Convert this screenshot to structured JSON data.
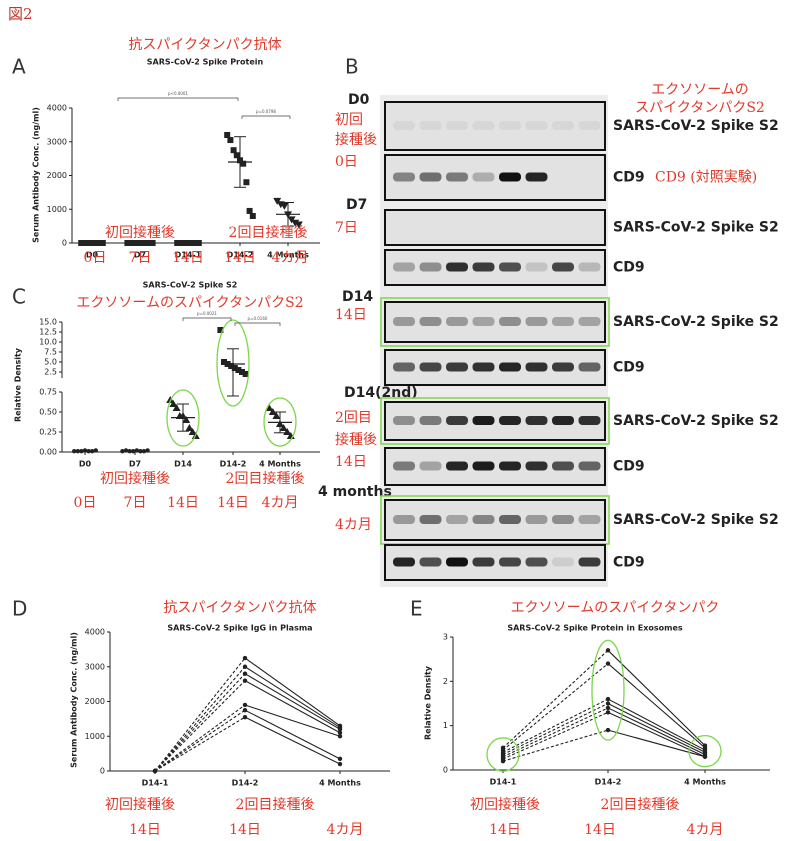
{
  "figure_label": "図2",
  "chart_data": [
    {
      "type": "dotplot",
      "panel": "A",
      "title": "抗スパイクタンパク抗体",
      "subtitle": "SARS-CoV-2 Spike Protein",
      "ylabel": "Serum Antibody Conc. (ng/ml)",
      "categories": [
        "D0",
        "D7",
        "D14-1",
        "D14-2",
        "4 Months"
      ],
      "markers": [
        "square",
        "square",
        "square",
        "square",
        "triangle-down"
      ],
      "points": [
        [
          0,
          0,
          0,
          0,
          0,
          0,
          0
        ],
        [
          0,
          0,
          0,
          0,
          0,
          0,
          0,
          0
        ],
        [
          0,
          0,
          0,
          0,
          0,
          0,
          0
        ],
        [
          3200,
          3050,
          2750,
          2600,
          2450,
          2350,
          1800,
          950,
          800
        ],
        [
          1250,
          1150,
          1100,
          850,
          700,
          600,
          550
        ]
      ],
      "means": [
        0,
        0,
        0,
        2400,
        850
      ],
      "errors": [
        0,
        0,
        0,
        750,
        350
      ],
      "ylim": [
        0,
        4000
      ],
      "yticks": [
        0,
        1000,
        2000,
        3000,
        4000
      ],
      "pvalues": [
        "p<0.0001",
        "p=0.0798"
      ],
      "annotations": {
        "groups": [
          "初回接種後",
          "2回目接種後"
        ],
        "days": [
          "0日",
          "7日",
          "14日",
          "14日",
          "4カ月"
        ]
      },
      "color": "#222222"
    },
    {
      "type": "dotplot-broken",
      "panel": "C",
      "title": "エクソソームのスパイクタンパクS2",
      "subtitle": "SARS-CoV-2 Spike S2",
      "ylabel": "Relative Density",
      "categories": [
        "D0",
        "D7",
        "D14",
        "D14-2",
        "4 Months"
      ],
      "markers": [
        "circle",
        "circle",
        "triangle",
        "square",
        "triangle"
      ],
      "points": [
        [
          0.01,
          0.01,
          0.01,
          0.02,
          0.01,
          0.01,
          0.02
        ],
        [
          0.01,
          0.02,
          0.01,
          0.01,
          0.02,
          0.01,
          0.01,
          0.02
        ],
        [
          0.65,
          0.6,
          0.55,
          0.45,
          0.45,
          0.4,
          0.3,
          0.25,
          0.2
        ],
        [
          13,
          5,
          4.5,
          4,
          3.5,
          3,
          2.5,
          2
        ],
        [
          0.55,
          0.5,
          0.45,
          0.35,
          0.3,
          0.25,
          0.2
        ]
      ],
      "means": [
        0.01,
        0.01,
        0.43,
        4.5,
        0.37
      ],
      "errors": [
        0.005,
        0.005,
        0.17,
        3.8,
        0.13
      ],
      "ylim": [
        0,
        0.75
      ],
      "yticks": [
        {
          "value": 0,
          "label": "0.00"
        },
        {
          "value": 0.25,
          "label": "0.25"
        },
        {
          "value": 0.5,
          "label": "0.50"
        },
        {
          "value": 0.75,
          "label": "0.75"
        }
      ],
      "ylim_upper": [
        1,
        15
      ],
      "yticks_upper": [
        {
          "value": 2.5,
          "label": "2.5"
        },
        {
          "value": 5,
          "label": "5.0"
        },
        {
          "value": 7.5,
          "label": "7.5"
        },
        {
          "value": 10,
          "label": "10.0"
        },
        {
          "value": 12.5,
          "label": "12.5"
        },
        {
          "value": 15,
          "label": "15.0"
        }
      ],
      "pvalues": [
        "p=0.0021",
        "p=0.0160"
      ],
      "highlight": [
        "D14",
        "D14-2",
        "4 Months"
      ],
      "highlight_color": "#7cd64a",
      "annotations": {
        "groups": [
          "初回接種後",
          "2回目接種後"
        ],
        "days": [
          "0日",
          "7日",
          "14日",
          "14日",
          "4カ月"
        ]
      },
      "color": "#222222"
    },
    {
      "type": "paired-line",
      "panel": "D",
      "title": "抗スパイクタンパク抗体",
      "subtitle": "SARS-CoV-2 Spike IgG in Plasma",
      "ylabel": "Serum Antibody Conc. (ng/ml)",
      "categories": [
        "D14-1",
        "D14-2",
        "4 Months"
      ],
      "line_styles": [
        "dashed",
        "solid"
      ],
      "series": [
        {
          "values": [
            0,
            3250,
            1300
          ]
        },
        {
          "values": [
            0,
            3000,
            1250
          ]
        },
        {
          "values": [
            0,
            2800,
            1200
          ]
        },
        {
          "values": [
            0,
            2600,
            1100
          ]
        },
        {
          "values": [
            0,
            1900,
            1000
          ]
        },
        {
          "values": [
            0,
            1750,
            350
          ]
        },
        {
          "values": [
            0,
            1550,
            200
          ]
        }
      ],
      "ylim": [
        0,
        4000
      ],
      "yticks": [
        0,
        1000,
        2000,
        3000,
        4000
      ],
      "annotations": {
        "groups": [
          "初回接種後",
          "2回目接種後"
        ],
        "days": [
          "14日",
          "14日",
          "4カ月"
        ]
      },
      "color": "#222222"
    },
    {
      "type": "paired-line",
      "panel": "E",
      "title": "エクソソームのスパイクタンパク",
      "subtitle": "SARS-CoV-2 Spike Protein in Exosomes",
      "ylabel": "Relative Density",
      "categories": [
        "D14-1",
        "D14-2",
        "4 Months"
      ],
      "line_styles": [
        "dashed",
        "solid"
      ],
      "series": [
        {
          "values": [
            0.5,
            2.7,
            0.55
          ]
        },
        {
          "values": [
            0.45,
            2.4,
            0.5
          ]
        },
        {
          "values": [
            0.4,
            1.6,
            0.45
          ]
        },
        {
          "values": [
            0.35,
            1.5,
            0.4
          ]
        },
        {
          "values": [
            0.3,
            1.4,
            0.35
          ]
        },
        {
          "values": [
            0.25,
            1.3,
            0.3
          ]
        },
        {
          "values": [
            0.2,
            0.9,
            0.3
          ]
        }
      ],
      "ylim": [
        0,
        3
      ],
      "yticks": [
        0,
        1,
        2,
        3
      ],
      "highlight": [
        "D14-1",
        "D14-2",
        "4 Months"
      ],
      "highlight_color": "#7cd64a",
      "annotations": {
        "groups": [
          "初回接種後",
          "2回目接種後"
        ],
        "days": [
          "14日",
          "14日",
          "4カ月"
        ]
      },
      "color": "#222222"
    }
  ],
  "blot": {
    "panel": "B",
    "note": [
      "エクソソームの",
      "スパイクタンパクS2"
    ],
    "groups": [
      {
        "label": "D0",
        "jp": [
          "初回",
          "接種後",
          "0日"
        ],
        "rows": [
          {
            "label": "SARS-CoV-2 Spike S2",
            "highlight": false
          },
          {
            "label": "CD9",
            "note": "CD9 (対照実験)",
            "highlight": false
          }
        ]
      },
      {
        "label": "D7",
        "jp": [
          "7日"
        ],
        "rows": [
          {
            "label": "SARS-CoV-2 Spike S2",
            "highlight": false
          },
          {
            "label": "CD9",
            "highlight": false
          }
        ]
      },
      {
        "label": "D14",
        "jp": [
          "14日"
        ],
        "rows": [
          {
            "label": "SARS-CoV-2 Spike S2",
            "highlight": true
          },
          {
            "label": "CD9",
            "highlight": false
          }
        ]
      },
      {
        "label": "D14(2nd)",
        "jp": [
          "2回目",
          "接種後",
          "14日"
        ],
        "rows": [
          {
            "label": "SARS-CoV-2 Spike S2",
            "highlight": true
          },
          {
            "label": "CD9",
            "highlight": false
          }
        ]
      },
      {
        "label": "4 months",
        "jp": [
          "4カ月"
        ],
        "rows": [
          {
            "label": "SARS-CoV-2 Spike S2",
            "highlight": true
          },
          {
            "label": "CD9",
            "highlight": false
          }
        ]
      }
    ]
  }
}
